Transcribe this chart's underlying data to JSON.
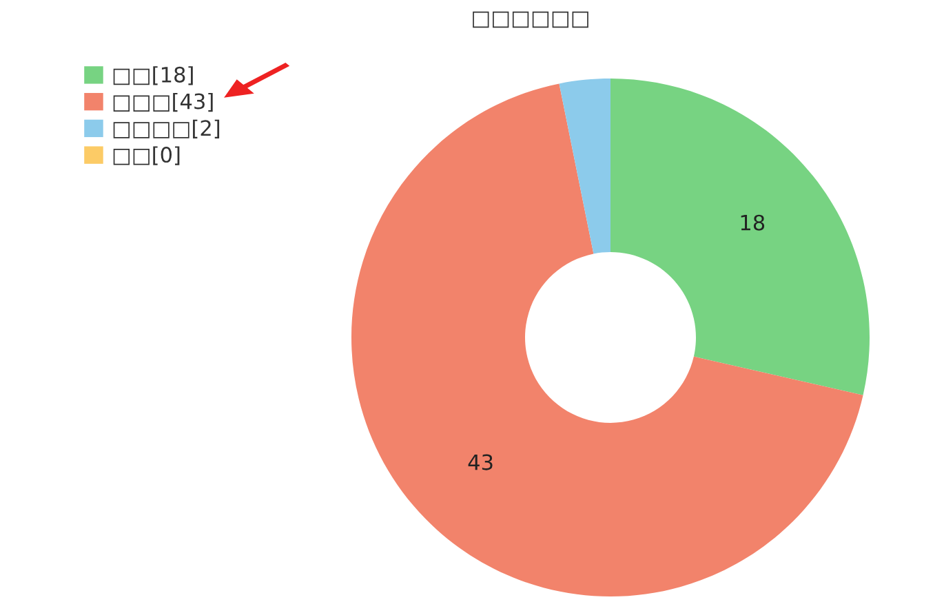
{
  "chart_data": {
    "type": "donut",
    "title": "□□□□□□",
    "categories": [
      "□□[18]",
      "□□□[43]",
      "□□□□[2]",
      "□□[0]"
    ],
    "values": [
      18,
      43,
      2,
      0
    ],
    "colors": [
      "#77d382",
      "#f2836b",
      "#8ccbeb",
      "#fccb66"
    ],
    "value_labels": [
      "18",
      "43",
      null,
      null
    ],
    "legend": "top left"
  }
}
